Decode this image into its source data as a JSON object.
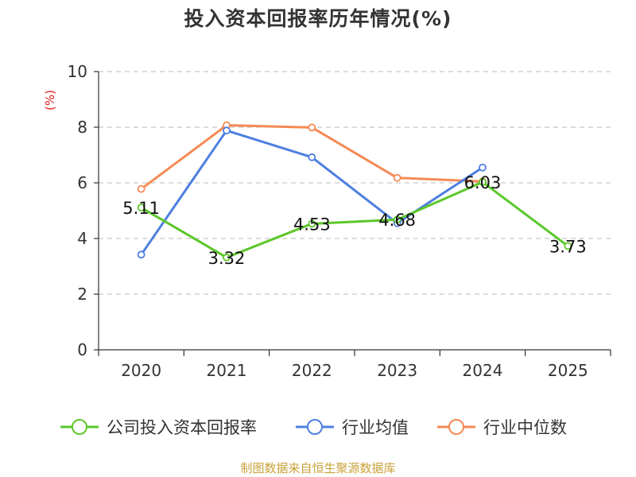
{
  "title": "投入资本回报率历年情况(%)",
  "source": "制图数据来自恒生聚源数据库",
  "chart_data": {
    "type": "line",
    "title": "投入资本回报率历年情况(%)",
    "ylabel": "(%)",
    "xlabel": "",
    "ylim": [
      0,
      10
    ],
    "yticks": [
      0,
      2,
      4,
      6,
      8,
      10
    ],
    "grid": true,
    "legend_position": "bottom",
    "categories": [
      "2020",
      "2021",
      "2022",
      "2023",
      "2024",
      "2025"
    ],
    "series": [
      {
        "name": "公司投入资本回报率",
        "color": "#5cc72a",
        "values": [
          5.11,
          3.32,
          4.53,
          4.68,
          6.03,
          3.73
        ],
        "labels": [
          "5.11",
          "3.32",
          "4.53",
          "4.68",
          "6.03",
          "3.73"
        ]
      },
      {
        "name": "行业均值",
        "color": "#4e7fe0",
        "values": [
          3.42,
          7.88,
          6.92,
          4.55,
          6.55,
          null
        ]
      },
      {
        "name": "行业中位数",
        "color": "#f58a55",
        "values": [
          5.78,
          8.07,
          7.99,
          6.18,
          6.05,
          null
        ]
      }
    ]
  }
}
